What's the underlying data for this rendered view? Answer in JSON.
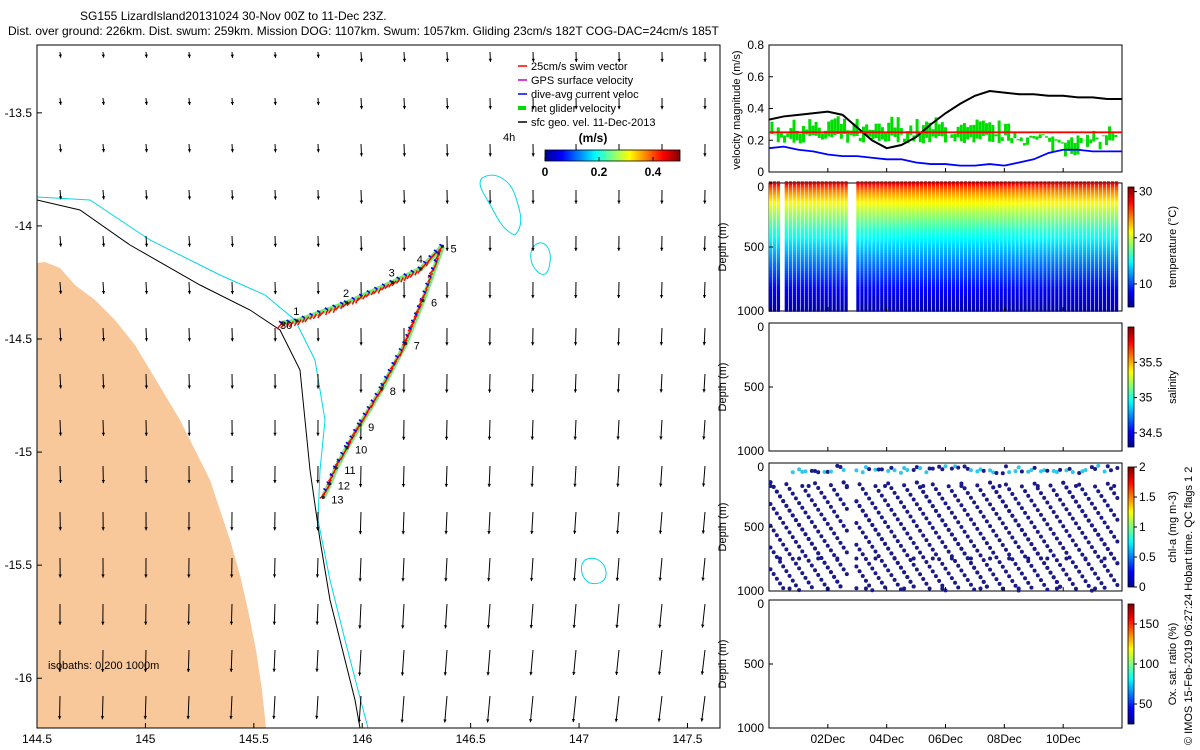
{
  "header": {
    "title": "SG155 LizardIsland20131024 30-Nov 00Z to 11-Dec 23Z.",
    "subtitle": "Dist. over ground: 226km. Dist. swum: 259km. Mission DOG: 1107km. Swum: 1057km. Gliding 23cm/s 182T COG-DAC=24cm/s 185T"
  },
  "credit": "© IMOS 15-Feb-2019 06:27:24 Hobart time. QC flags 1  2",
  "colors": {
    "land": "#f9c89a",
    "isobath_200": "#000000",
    "isobath_1000": "#00d8e8",
    "swim": "#ff0000",
    "gps": "#cc00cc",
    "dac": "#0000ff",
    "net": "#00dd00",
    "geo": "#000000"
  },
  "map": {
    "xlim": [
      144.5,
      147.65
    ],
    "ylim": [
      -16.22,
      -13.2
    ],
    "xticks": [
      144.5,
      145,
      145.5,
      146,
      146.5,
      147,
      147.5
    ],
    "yticks": [
      -13.5,
      -14,
      -14.5,
      -15,
      -15.5,
      -16
    ],
    "isobath_note": "isobaths: 0   200  1000m",
    "time_label": "4h",
    "legend": [
      {
        "label": "25cm/s swim vector",
        "color": "#ff0000",
        "style": "line"
      },
      {
        "label": "GPS surface velocity",
        "color": "#cc00cc",
        "style": "line"
      },
      {
        "label": "dive-avg current veloc",
        "color": "#0000ff",
        "style": "line"
      },
      {
        "label": "net glider velocity",
        "color": "#00dd00",
        "style": "bar"
      },
      {
        "label": "sfc geo. vel. 11-Dec-2013",
        "color": "#000000",
        "style": "line"
      }
    ],
    "colorbar": {
      "title": "(m/s)",
      "ticks": [
        "0",
        "0.2",
        "0.4"
      ],
      "range": [
        0,
        0.5
      ]
    },
    "track": [
      {
        "lon": 145.63,
        "lat": -14.43,
        "label": "30"
      },
      {
        "lon": 145.7,
        "lat": -14.42,
        "label": "1"
      },
      {
        "lon": 145.93,
        "lat": -14.34,
        "label": "2"
      },
      {
        "lon": 146.14,
        "lat": -14.25,
        "label": "3"
      },
      {
        "lon": 146.27,
        "lat": -14.19,
        "label": "4"
      },
      {
        "lon": 146.37,
        "lat": -14.09,
        "label": "5"
      },
      {
        "lon": 146.28,
        "lat": -14.33,
        "label": "6"
      },
      {
        "lon": 146.2,
        "lat": -14.52,
        "label": "7"
      },
      {
        "lon": 146.09,
        "lat": -14.72,
        "label": "8"
      },
      {
        "lon": 145.99,
        "lat": -14.88,
        "label": "9"
      },
      {
        "lon": 145.93,
        "lat": -14.98,
        "label": "10"
      },
      {
        "lon": 145.88,
        "lat": -15.07,
        "label": "11"
      },
      {
        "lon": 145.85,
        "lat": -15.14,
        "label": "12"
      },
      {
        "lon": 145.82,
        "lat": -15.2,
        "label": "13"
      }
    ]
  },
  "right": {
    "time_ticks": [
      "02Dec",
      "04Dec",
      "06Dec",
      "08Dec",
      "10Dec"
    ],
    "velocity": {
      "ylabel": "velocity magnitude (m/s)",
      "yticks": [
        "0",
        "0.2",
        "0.4",
        "0.6",
        "0.8"
      ],
      "ylim": [
        0,
        0.8
      ]
    },
    "panels": [
      {
        "ylabel": "Depth (m)",
        "yticks": [
          "0",
          "500",
          "1000"
        ],
        "cbar_label": "temperature (°C)",
        "cbar_ticks": [
          "30",
          "20",
          "10"
        ],
        "cbar_range": [
          5,
          31
        ]
      },
      {
        "ylabel": "Depth (m)",
        "yticks": [
          "0",
          "500",
          "1000"
        ],
        "cbar_label": "salinity",
        "cbar_ticks": [
          "35.5",
          "35",
          "34.5"
        ],
        "cbar_range": [
          34.3,
          36
        ]
      },
      {
        "ylabel": "Depth (m)",
        "yticks": [
          "0",
          "500",
          "1000"
        ],
        "cbar_label": "chl-a (mg m-3)",
        "cbar_ticks": [
          "2",
          "1.5",
          "1",
          "0.5",
          "0"
        ],
        "cbar_range": [
          0,
          2
        ]
      },
      {
        "ylabel": "Depth (m)",
        "yticks": [
          "0",
          "500",
          "1000"
        ],
        "cbar_label": "Ox. sat. ratio (%)",
        "cbar_ticks": [
          "150",
          "100",
          "50"
        ],
        "cbar_range": [
          25,
          175
        ]
      }
    ]
  },
  "chart_data": [
    {
      "type": "scatter",
      "title": "SG155 LizardIsland20131024 30-Nov 00Z to 11-Dec 23Z.",
      "xlabel": "",
      "ylabel": "",
      "xlim": [
        144.5,
        147.65
      ],
      "ylim": [
        -16.22,
        -13.2
      ],
      "series": [
        {
          "name": "glider track",
          "x": [
            145.63,
            145.7,
            145.93,
            146.14,
            146.27,
            146.37,
            146.28,
            146.2,
            146.09,
            145.99,
            145.93,
            145.88,
            145.85,
            145.82
          ],
          "y": [
            -14.43,
            -14.42,
            -14.34,
            -14.25,
            -14.19,
            -14.09,
            -14.33,
            -14.52,
            -14.72,
            -14.88,
            -14.98,
            -15.07,
            -15.14,
            -15.2
          ]
        }
      ]
    },
    {
      "type": "line",
      "ylabel": "velocity magnitude (m/s)",
      "ylim": [
        0,
        0.8
      ],
      "x_days": [
        0,
        0.5,
        1,
        1.5,
        2,
        2.5,
        3,
        3.5,
        4,
        4.5,
        5,
        5.5,
        6,
        6.5,
        7,
        7.5,
        8,
        8.5,
        9,
        9.5,
        10,
        10.5,
        11,
        11.5,
        12
      ],
      "series": [
        {
          "name": "sfc geo speed",
          "values": [
            0.33,
            0.35,
            0.36,
            0.37,
            0.38,
            0.36,
            0.28,
            0.2,
            0.15,
            0.17,
            0.22,
            0.3,
            0.37,
            0.43,
            0.48,
            0.51,
            0.5,
            0.49,
            0.49,
            0.48,
            0.48,
            0.47,
            0.47,
            0.46,
            0.46
          ]
        },
        {
          "name": "swim speed",
          "values": [
            0.25,
            0.25,
            0.25,
            0.25,
            0.25,
            0.25,
            0.25,
            0.25,
            0.25,
            0.25,
            0.25,
            0.25,
            0.25,
            0.25,
            0.25,
            0.25,
            0.25,
            0.25,
            0.25,
            0.25,
            0.25,
            0.25,
            0.25,
            0.25,
            0.25
          ]
        },
        {
          "name": "dive-avg current",
          "values": [
            0.15,
            0.16,
            0.14,
            0.13,
            0.11,
            0.1,
            0.1,
            0.09,
            0.08,
            0.08,
            0.06,
            0.05,
            0.05,
            0.04,
            0.04,
            0.05,
            0.04,
            0.06,
            0.08,
            0.12,
            0.14,
            0.14,
            0.13,
            0.13,
            0.13
          ]
        },
        {
          "name": "net glider velocity",
          "values": [
            0.28,
            0.27,
            0.3,
            0.26,
            0.31,
            0.28,
            0.25,
            0.26,
            0.3,
            0.27,
            0.28,
            0.29,
            0.27,
            0.26,
            0.28,
            0.27,
            0.25,
            0.22,
            0.2,
            0.18,
            0.15,
            0.17,
            0.2,
            0.25,
            0.3
          ]
        }
      ]
    },
    {
      "type": "heatmap",
      "title": "temperature (°C)",
      "ylabel": "Depth (m)",
      "ylim": [
        1000,
        0
      ],
      "range": [
        5,
        31
      ]
    },
    {
      "type": "heatmap",
      "title": "salinity",
      "ylabel": "Depth (m)",
      "ylim": [
        1000,
        0
      ],
      "range": [
        34.3,
        36
      ]
    },
    {
      "type": "heatmap",
      "title": "chl-a (mg m-3)",
      "ylabel": "Depth (m)",
      "ylim": [
        1000,
        0
      ],
      "range": [
        0,
        2
      ]
    },
    {
      "type": "heatmap",
      "title": "Ox. sat. ratio (%)",
      "ylabel": "Depth (m)",
      "ylim": [
        1000,
        0
      ],
      "range": [
        25,
        175
      ]
    }
  ]
}
